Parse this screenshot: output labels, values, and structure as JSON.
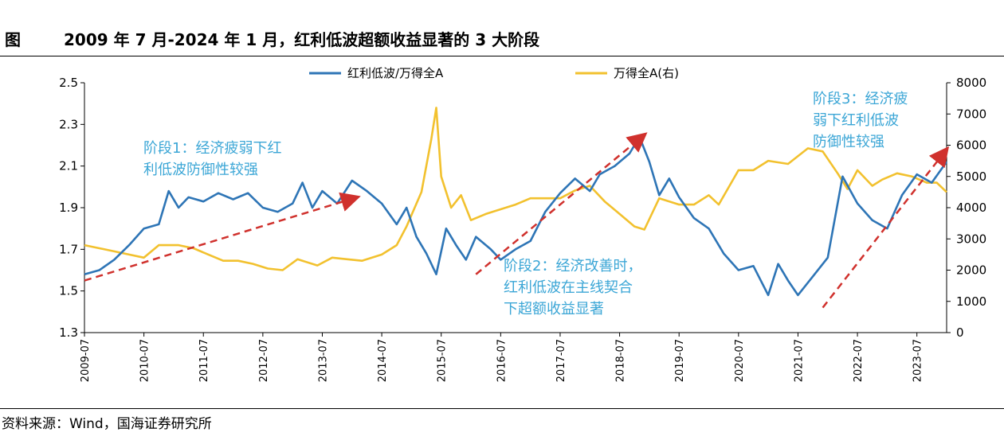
{
  "figure": {
    "label": "图",
    "title": "2009 年 7 月-2024 年 1 月，红利低波超额收益显著的 3 大阶段",
    "source": "资料来源：Wind，国海证券研究所"
  },
  "colors": {
    "ratio_series": "#2E75B6",
    "index_series": "#F2C12E",
    "trend_arrow": "#D0312D",
    "annotation_text": "#3BA6D6"
  },
  "chart_data": {
    "type": "line",
    "title": "",
    "xlabel": "",
    "ylabel_left": "",
    "ylabel_right": "",
    "x_tick_labels": [
      "2009-07",
      "2010-07",
      "2011-07",
      "2012-07",
      "2013-07",
      "2014-07",
      "2015-07",
      "2016-07",
      "2017-07",
      "2018-07",
      "2019-07",
      "2020-07",
      "2021-07",
      "2022-07",
      "2023-07"
    ],
    "x_range": [
      "2009-07",
      "2024-01"
    ],
    "y_left": {
      "range": [
        1.3,
        2.5
      ],
      "ticks": [
        "1.3",
        "1.5",
        "1.7",
        "1.9",
        "2.1",
        "2.3",
        "2.5"
      ]
    },
    "y_right": {
      "range": [
        0,
        8000
      ],
      "ticks": [
        "0",
        "1000",
        "2000",
        "3000",
        "4000",
        "5000",
        "6000",
        "7000",
        "8000"
      ]
    },
    "grid": false,
    "legend_position": "top",
    "series": [
      {
        "name": "红利低波/万得全A",
        "axis": "left",
        "points": [
          [
            "2009-07",
            1.58
          ],
          [
            "2009-10",
            1.6
          ],
          [
            "2010-01",
            1.65
          ],
          [
            "2010-04",
            1.72
          ],
          [
            "2010-07",
            1.8
          ],
          [
            "2010-10",
            1.82
          ],
          [
            "2010-12",
            1.98
          ],
          [
            "2011-02",
            1.9
          ],
          [
            "2011-04",
            1.95
          ],
          [
            "2011-07",
            1.93
          ],
          [
            "2011-10",
            1.97
          ],
          [
            "2012-01",
            1.94
          ],
          [
            "2012-04",
            1.97
          ],
          [
            "2012-07",
            1.9
          ],
          [
            "2012-10",
            1.88
          ],
          [
            "2013-01",
            1.92
          ],
          [
            "2013-03",
            2.02
          ],
          [
            "2013-05",
            1.9
          ],
          [
            "2013-07",
            1.98
          ],
          [
            "2013-10",
            1.92
          ],
          [
            "2014-01",
            2.03
          ],
          [
            "2014-04",
            1.98
          ],
          [
            "2014-07",
            1.92
          ],
          [
            "2014-10",
            1.82
          ],
          [
            "2014-12",
            1.9
          ],
          [
            "2015-02",
            1.76
          ],
          [
            "2015-04",
            1.68
          ],
          [
            "2015-06",
            1.58
          ],
          [
            "2015-08",
            1.8
          ],
          [
            "2015-10",
            1.72
          ],
          [
            "2015-12",
            1.65
          ],
          [
            "2016-02",
            1.76
          ],
          [
            "2016-05",
            1.7
          ],
          [
            "2016-07",
            1.65
          ],
          [
            "2016-10",
            1.7
          ],
          [
            "2017-01",
            1.74
          ],
          [
            "2017-04",
            1.88
          ],
          [
            "2017-07",
            1.97
          ],
          [
            "2017-10",
            2.04
          ],
          [
            "2018-01",
            1.98
          ],
          [
            "2018-03",
            2.06
          ],
          [
            "2018-06",
            2.1
          ],
          [
            "2018-09",
            2.16
          ],
          [
            "2018-11",
            2.24
          ],
          [
            "2019-01",
            2.12
          ],
          [
            "2019-03",
            1.96
          ],
          [
            "2019-05",
            2.04
          ],
          [
            "2019-07",
            1.95
          ],
          [
            "2019-10",
            1.85
          ],
          [
            "2020-01",
            1.8
          ],
          [
            "2020-04",
            1.68
          ],
          [
            "2020-07",
            1.6
          ],
          [
            "2020-10",
            1.62
          ],
          [
            "2021-01",
            1.48
          ],
          [
            "2021-03",
            1.63
          ],
          [
            "2021-05",
            1.55
          ],
          [
            "2021-07",
            1.48
          ],
          [
            "2021-10",
            1.57
          ],
          [
            "2022-01",
            1.66
          ],
          [
            "2022-04",
            2.05
          ],
          [
            "2022-07",
            1.92
          ],
          [
            "2022-10",
            1.84
          ],
          [
            "2023-01",
            1.8
          ],
          [
            "2023-04",
            1.96
          ],
          [
            "2023-07",
            2.06
          ],
          [
            "2023-10",
            2.02
          ],
          [
            "2024-01",
            2.12
          ]
        ]
      },
      {
        "name": "万得全A(右)",
        "axis": "right",
        "points": [
          [
            "2009-07",
            2800
          ],
          [
            "2009-10",
            2700
          ],
          [
            "2010-01",
            2600
          ],
          [
            "2010-04",
            2500
          ],
          [
            "2010-07",
            2400
          ],
          [
            "2010-10",
            2800
          ],
          [
            "2011-02",
            2800
          ],
          [
            "2011-05",
            2700
          ],
          [
            "2011-08",
            2500
          ],
          [
            "2011-11",
            2300
          ],
          [
            "2012-02",
            2300
          ],
          [
            "2012-05",
            2200
          ],
          [
            "2012-08",
            2050
          ],
          [
            "2012-11",
            2000
          ],
          [
            "2013-02",
            2350
          ],
          [
            "2013-06",
            2150
          ],
          [
            "2013-09",
            2400
          ],
          [
            "2013-12",
            2350
          ],
          [
            "2014-03",
            2300
          ],
          [
            "2014-07",
            2500
          ],
          [
            "2014-10",
            2800
          ],
          [
            "2014-12",
            3400
          ],
          [
            "2015-03",
            4500
          ],
          [
            "2015-05",
            6200
          ],
          [
            "2015-06",
            7200
          ],
          [
            "2015-07",
            5000
          ],
          [
            "2015-09",
            4000
          ],
          [
            "2015-11",
            4400
          ],
          [
            "2016-01",
            3600
          ],
          [
            "2016-04",
            3800
          ],
          [
            "2016-07",
            3950
          ],
          [
            "2016-10",
            4100
          ],
          [
            "2017-01",
            4300
          ],
          [
            "2017-04",
            4300
          ],
          [
            "2017-07",
            4300
          ],
          [
            "2017-10",
            4550
          ],
          [
            "2018-01",
            4700
          ],
          [
            "2018-04",
            4200
          ],
          [
            "2018-07",
            3800
          ],
          [
            "2018-10",
            3400
          ],
          [
            "2018-12",
            3300
          ],
          [
            "2019-03",
            4300
          ],
          [
            "2019-07",
            4100
          ],
          [
            "2019-10",
            4100
          ],
          [
            "2020-01",
            4400
          ],
          [
            "2020-03",
            4100
          ],
          [
            "2020-07",
            5200
          ],
          [
            "2020-10",
            5200
          ],
          [
            "2021-01",
            5500
          ],
          [
            "2021-05",
            5400
          ],
          [
            "2021-09",
            5900
          ],
          [
            "2021-12",
            5800
          ],
          [
            "2022-03",
            5100
          ],
          [
            "2022-05",
            4600
          ],
          [
            "2022-07",
            5200
          ],
          [
            "2022-10",
            4700
          ],
          [
            "2022-12",
            4900
          ],
          [
            "2023-03",
            5100
          ],
          [
            "2023-06",
            5000
          ],
          [
            "2023-09",
            4800
          ],
          [
            "2023-11",
            4800
          ],
          [
            "2024-01",
            4500
          ]
        ]
      }
    ],
    "trend_arrows": [
      {
        "from": [
          "2009-07",
          1.55
        ],
        "to": [
          "2014-02",
          1.95
        ]
      },
      {
        "from": [
          "2016-02",
          1.58
        ],
        "to": [
          "2018-12",
          2.25
        ]
      },
      {
        "from": [
          "2021-12",
          1.42
        ],
        "to": [
          "2024-01",
          2.18
        ]
      }
    ],
    "annotations": [
      {
        "lines": [
          "阶段1：经济疲弱下红",
          "利低波防御性较强"
        ]
      },
      {
        "lines": [
          "阶段2：经济改善时，",
          "红利低波在主线契合",
          "下超额收益显著"
        ]
      },
      {
        "lines": [
          "阶段3：经济疲",
          "弱下红利低波",
          "防御性较强"
        ]
      }
    ]
  }
}
